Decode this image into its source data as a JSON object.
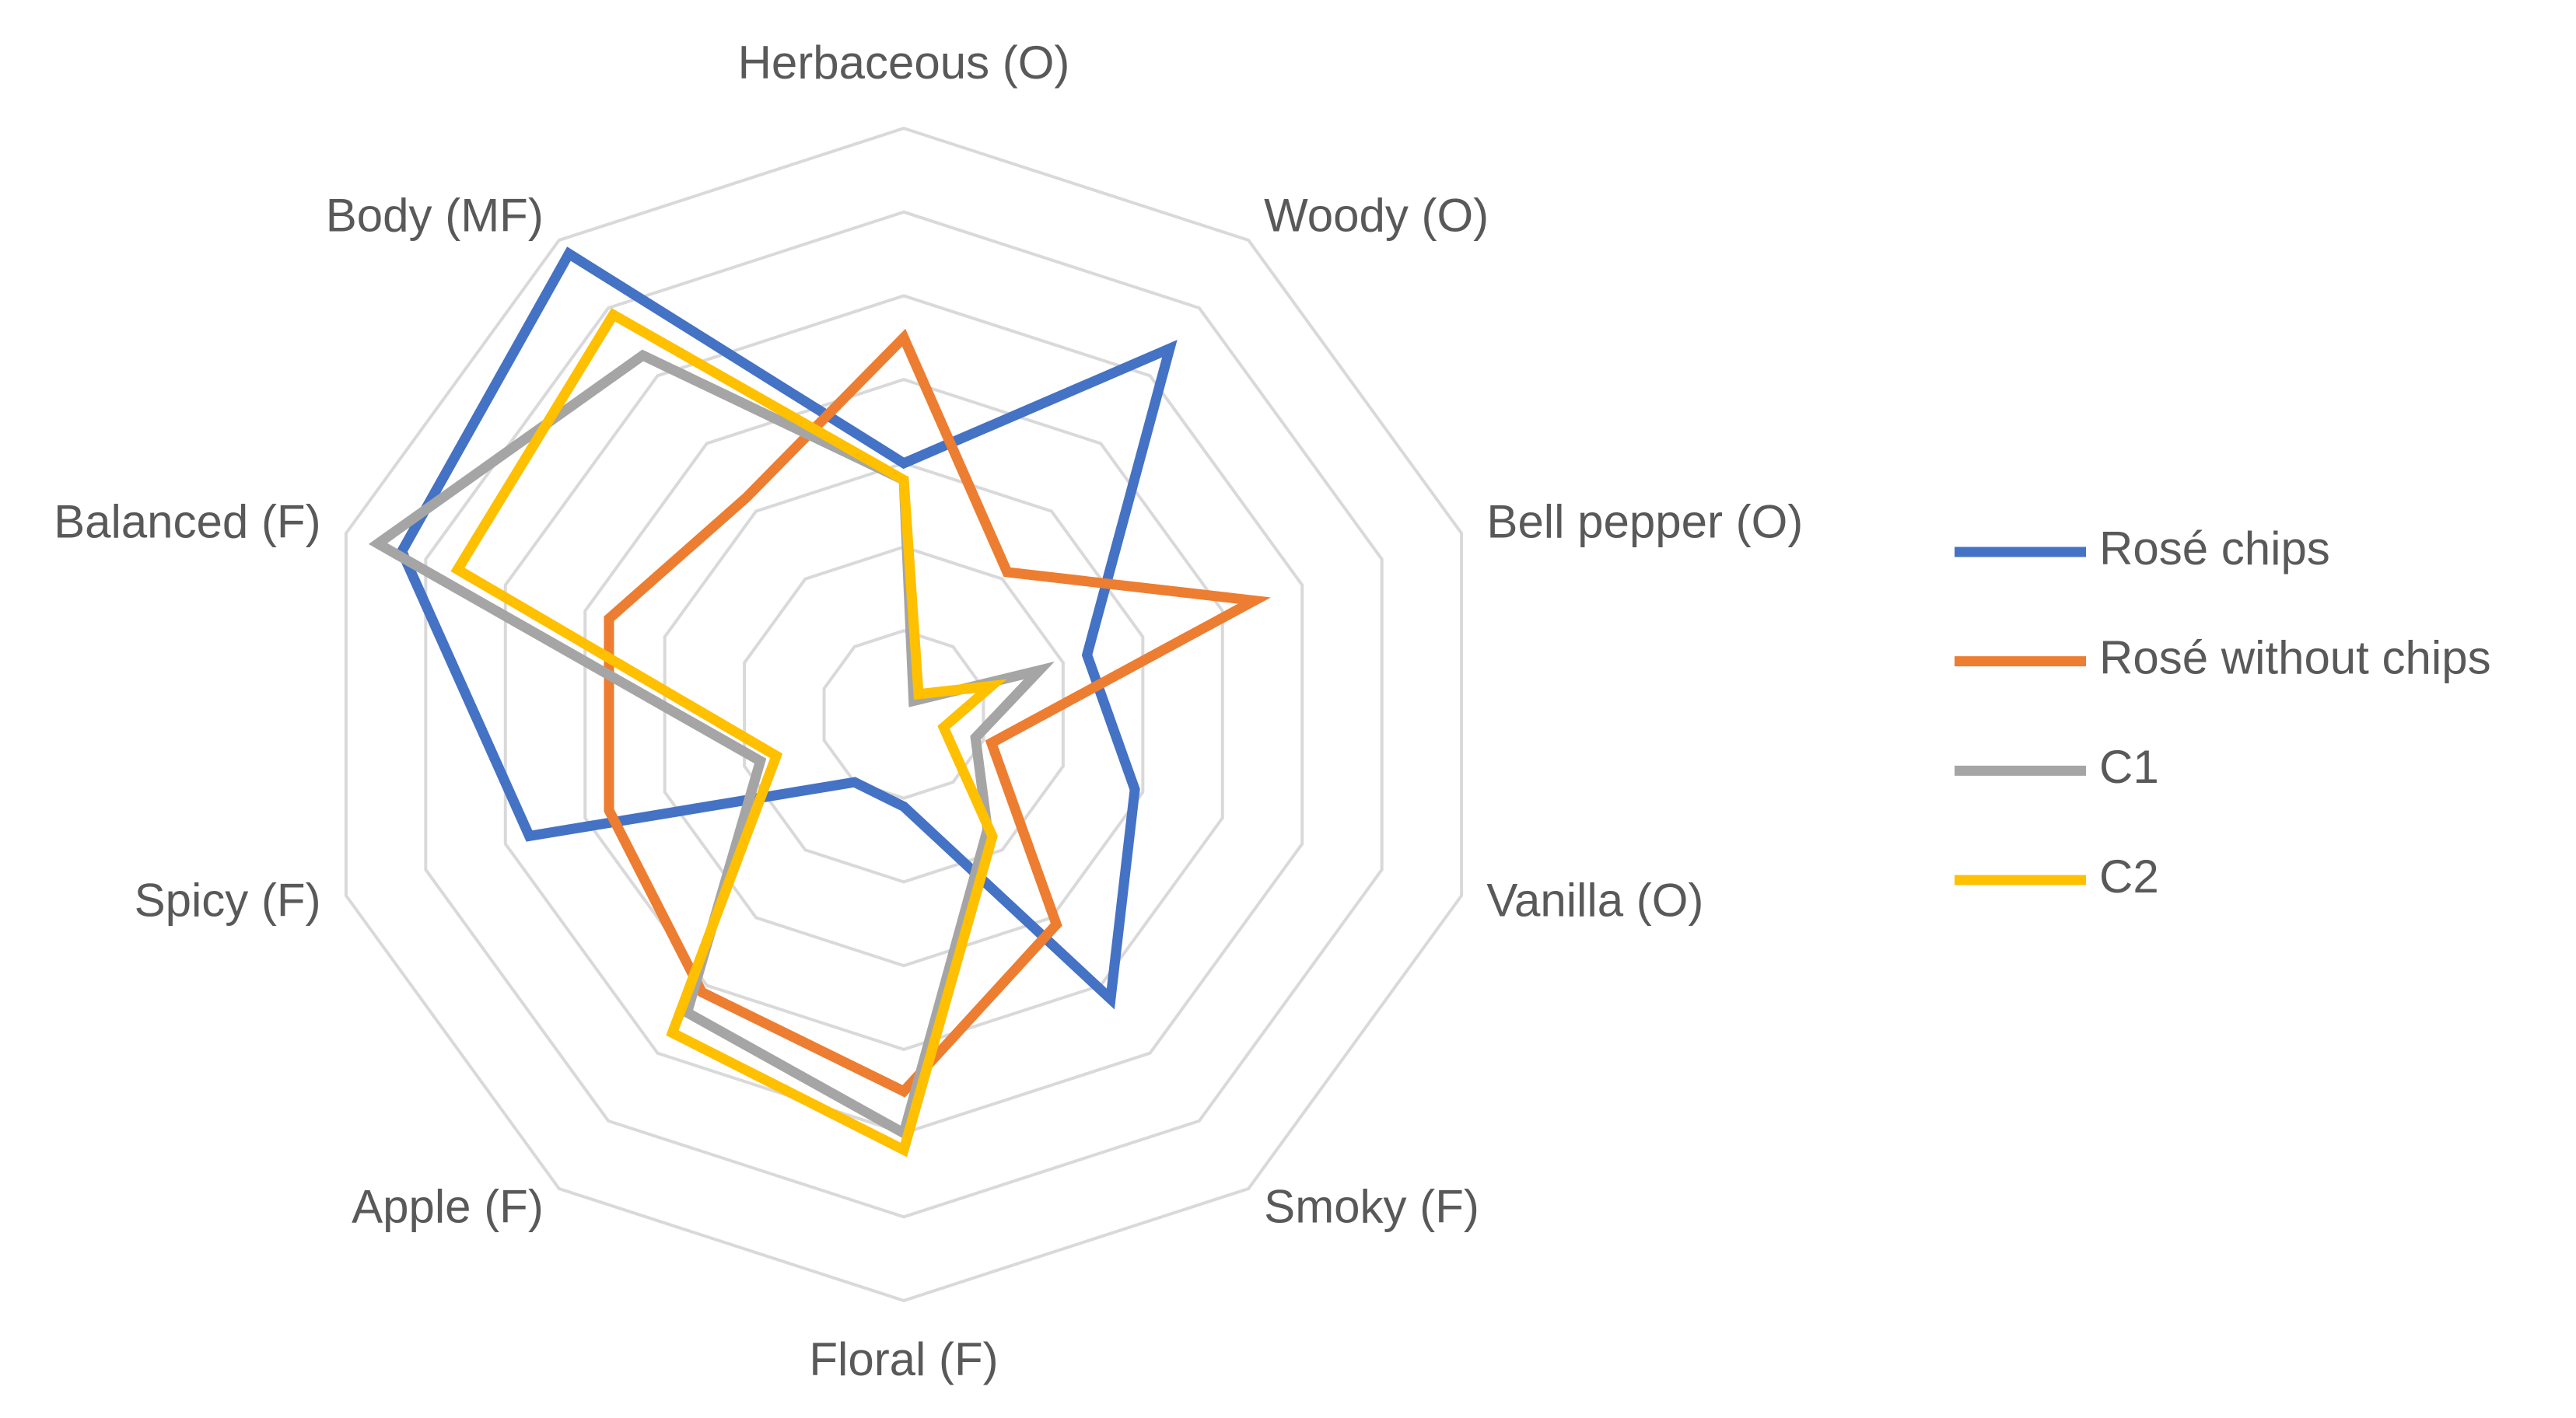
{
  "chart_data": {
    "type": "radar",
    "categories": [
      "Herbaceous (O)",
      "Woody (O)",
      "Bell pepper (O)",
      "Vanilla (O)",
      "Smoky (F)",
      "Floral (F)",
      "Apple (F)",
      "Spicy (F)",
      "Balanced (F)",
      "Body (MF)"
    ],
    "rlim": [
      0,
      7
    ],
    "rticks": [
      1,
      2,
      3,
      4,
      5,
      6,
      7
    ],
    "grid": true,
    "legend": "right",
    "series": [
      {
        "name": "Rosé chips",
        "color": "#4472c4",
        "values": [
          3.0,
          5.4,
          2.3,
          2.9,
          4.2,
          1.1,
          1.0,
          4.7,
          6.3,
          6.8
        ]
      },
      {
        "name": "Rosé without chips",
        "color": "#ed7d31",
        "values": [
          4.5,
          2.1,
          4.4,
          1.1,
          3.1,
          4.5,
          4.1,
          3.7,
          3.7,
          3.2
        ]
      },
      {
        "name": "C1",
        "color": "#a5a5a5",
        "values": [
          2.8,
          0.2,
          1.7,
          0.9,
          1.7,
          5.0,
          4.4,
          1.8,
          6.6,
          5.3
        ]
      },
      {
        "name": "C2",
        "color": "#ffc000",
        "values": [
          2.8,
          0.3,
          1.1,
          0.5,
          1.8,
          5.2,
          4.7,
          1.6,
          5.6,
          5.9
        ]
      }
    ]
  }
}
